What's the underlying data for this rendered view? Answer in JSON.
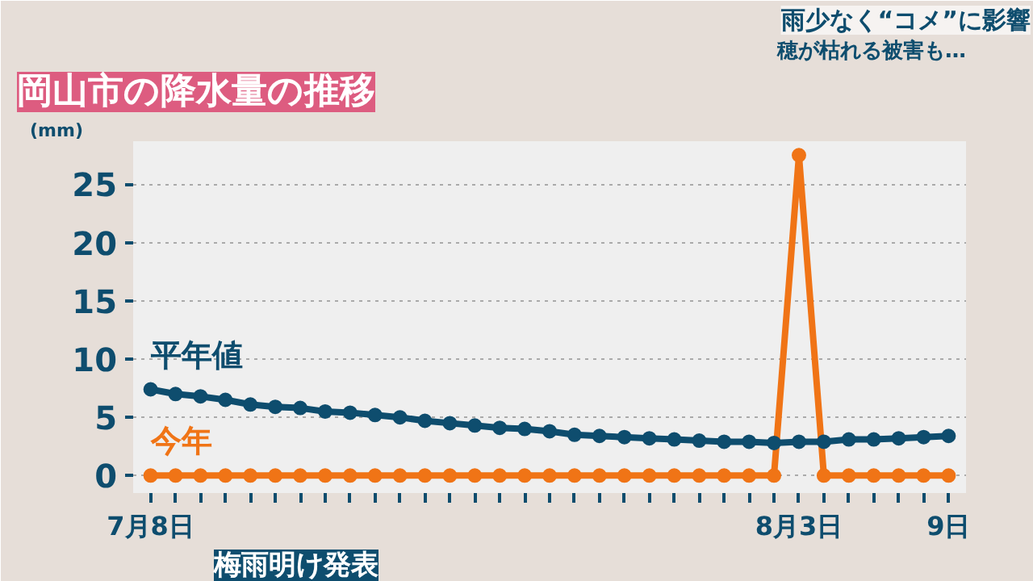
{
  "chart_data": {
    "type": "line",
    "title": "岡山市の降水量の推移",
    "subtitle": "雨少なく“コメ”に影響",
    "annotations": [
      "穂が枯れる被害も…",
      "梅雨明け発表"
    ],
    "ylabel": "(mm)",
    "categories": [
      "7月8日",
      null,
      null,
      null,
      null,
      null,
      null,
      null,
      null,
      null,
      null,
      null,
      null,
      null,
      null,
      null,
      null,
      null,
      null,
      null,
      null,
      null,
      null,
      null,
      null,
      null,
      "8月3日",
      null,
      null,
      null,
      null,
      null,
      "9日"
    ],
    "series": [
      {
        "name": "平年値",
        "color": "#0e4d6e",
        "values": [
          7.4,
          7.0,
          6.8,
          6.5,
          6.1,
          5.9,
          5.8,
          5.5,
          5.4,
          5.2,
          5.0,
          4.7,
          4.5,
          4.3,
          4.1,
          4.0,
          3.8,
          3.5,
          3.4,
          3.3,
          3.2,
          3.1,
          3.0,
          2.9,
          2.9,
          2.8,
          2.9,
          2.9,
          3.1,
          3.1,
          3.2,
          3.3,
          3.4
        ]
      },
      {
        "name": "今年",
        "color": "#f07416",
        "values": [
          0,
          0,
          0,
          0,
          0,
          0,
          0,
          0,
          0,
          0,
          0,
          0,
          0,
          0,
          0,
          0,
          0,
          0,
          0,
          0,
          0,
          0,
          0,
          0,
          0,
          0,
          27.5,
          0,
          0,
          0,
          0,
          0,
          0
        ]
      }
    ],
    "ylim": [
      -1.5,
      28.7
    ],
    "yticks": [
      0,
      5,
      10,
      15,
      20,
      25
    ],
    "grid": "y",
    "marker": "circle",
    "line_style": "solid"
  }
}
